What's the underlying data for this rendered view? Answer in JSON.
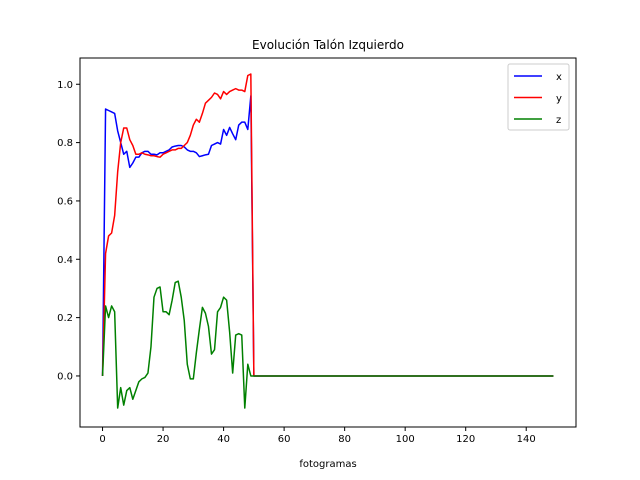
{
  "chart_data": {
    "type": "line",
    "title": "Evolución Talón Izquierdo",
    "xlabel": "fotogramas",
    "ylabel": "",
    "xlim": [
      -7.45,
      156.45
    ],
    "ylim": [
      -0.175,
      1.09
    ],
    "xticks": [
      0,
      20,
      40,
      60,
      80,
      100,
      120,
      140
    ],
    "yticks": [
      0.0,
      0.2,
      0.4,
      0.6,
      0.8,
      1.0
    ],
    "xtick_labels": [
      "0",
      "20",
      "40",
      "60",
      "80",
      "100",
      "120",
      "140"
    ],
    "ytick_labels": [
      "0.0",
      "0.2",
      "0.4",
      "0.6",
      "0.8",
      "1.0"
    ],
    "grid": false,
    "legend_position": "top-right",
    "series": [
      {
        "name": "x",
        "color": "#0000ff",
        "x": [
          0,
          1,
          2,
          3,
          4,
          5,
          6,
          7,
          8,
          9,
          10,
          11,
          12,
          13,
          14,
          15,
          16,
          17,
          18,
          19,
          20,
          21,
          22,
          23,
          24,
          25,
          26,
          27,
          28,
          29,
          30,
          31,
          32,
          33,
          34,
          35,
          36,
          37,
          38,
          39,
          40,
          41,
          42,
          43,
          44,
          45,
          46,
          47,
          48,
          49,
          50,
          149
        ],
        "y": [
          0,
          0.915,
          0.91,
          0.905,
          0.9,
          0.84,
          0.8,
          0.76,
          0.77,
          0.715,
          0.73,
          0.75,
          0.75,
          0.765,
          0.77,
          0.77,
          0.76,
          0.76,
          0.758,
          0.765,
          0.765,
          0.77,
          0.775,
          0.785,
          0.788,
          0.79,
          0.79,
          0.785,
          0.775,
          0.77,
          0.77,
          0.765,
          0.752,
          0.755,
          0.758,
          0.76,
          0.79,
          0.795,
          0.8,
          0.795,
          0.845,
          0.825,
          0.852,
          0.83,
          0.81,
          0.86,
          0.87,
          0.87,
          0.845,
          0.96,
          0,
          0
        ]
      },
      {
        "name": "y",
        "color": "#ff0000",
        "x": [
          0,
          1,
          2,
          3,
          4,
          5,
          6,
          7,
          8,
          9,
          10,
          11,
          12,
          13,
          14,
          15,
          16,
          17,
          18,
          19,
          20,
          21,
          22,
          23,
          24,
          25,
          26,
          27,
          28,
          29,
          30,
          31,
          32,
          33,
          34,
          35,
          36,
          37,
          38,
          39,
          40,
          41,
          42,
          43,
          44,
          45,
          46,
          47,
          48,
          49,
          50,
          149
        ],
        "y": [
          0,
          0.42,
          0.48,
          0.49,
          0.55,
          0.7,
          0.8,
          0.85,
          0.85,
          0.81,
          0.79,
          0.76,
          0.76,
          0.765,
          0.76,
          0.758,
          0.755,
          0.755,
          0.752,
          0.75,
          0.76,
          0.765,
          0.77,
          0.775,
          0.775,
          0.78,
          0.78,
          0.79,
          0.8,
          0.825,
          0.86,
          0.88,
          0.87,
          0.9,
          0.935,
          0.945,
          0.955,
          0.97,
          0.965,
          0.95,
          0.975,
          0.965,
          0.975,
          0.98,
          0.985,
          0.98,
          0.98,
          0.975,
          1.03,
          1.035,
          0,
          0
        ]
      },
      {
        "name": "z",
        "color": "#008000",
        "x": [
          0,
          1,
          2,
          3,
          4,
          5,
          6,
          7,
          8,
          9,
          10,
          11,
          12,
          13,
          14,
          15,
          16,
          17,
          18,
          19,
          20,
          21,
          22,
          23,
          24,
          25,
          26,
          27,
          28,
          29,
          30,
          31,
          32,
          33,
          34,
          35,
          36,
          37,
          38,
          39,
          40,
          41,
          42,
          43,
          44,
          45,
          46,
          47,
          48,
          49,
          50,
          149
        ],
        "y": [
          0,
          0.24,
          0.2,
          0.24,
          0.22,
          -0.11,
          -0.04,
          -0.1,
          -0.05,
          -0.04,
          -0.08,
          -0.05,
          -0.02,
          -0.01,
          -0.005,
          0.01,
          0.1,
          0.27,
          0.3,
          0.305,
          0.22,
          0.22,
          0.21,
          0.26,
          0.32,
          0.325,
          0.27,
          0.19,
          0.04,
          -0.01,
          -0.01,
          0.08,
          0.16,
          0.235,
          0.215,
          0.17,
          0.075,
          0.09,
          0.22,
          0.235,
          0.27,
          0.26,
          0.15,
          0.01,
          0.14,
          0.145,
          0.14,
          -0.11,
          0.04,
          0,
          0,
          0
        ]
      }
    ]
  }
}
